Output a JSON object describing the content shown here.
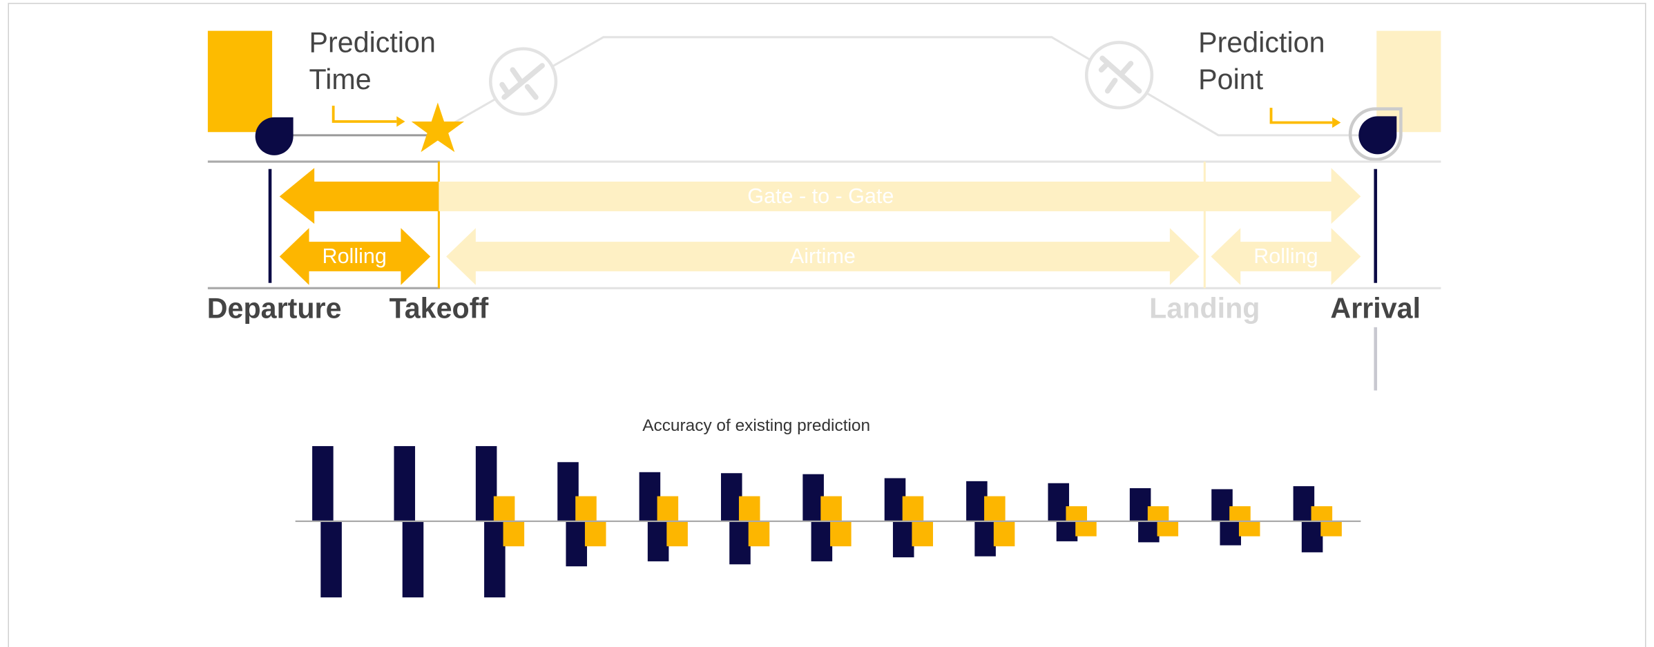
{
  "diagram": {
    "prediction_time": [
      "Prediction",
      "Time"
    ],
    "prediction_point": [
      "Prediction",
      "Point"
    ],
    "gate_to_gate": "Gate - to - Gate",
    "rolling_out": "Rolling",
    "airtime": "Airtime",
    "rolling_in": "Rolling",
    "departure": "Departure",
    "takeoff": "Takeoff",
    "landing": "Landing",
    "arrival": "Arrival"
  },
  "chart_data": {
    "type": "bar",
    "title": "Accuracy of existing prediction",
    "ylim": [
      -80,
      80
    ],
    "series": [
      {
        "color": "#0b0a45",
        "values": [
          75,
          75,
          75,
          59,
          49,
          48,
          47,
          43,
          40,
          38,
          33,
          32,
          35
        ]
      },
      {
        "color": "#0b0a45",
        "values": [
          -76,
          -76,
          -76,
          -45,
          -40,
          -43,
          -40,
          -36,
          -35,
          -20,
          -21,
          -24,
          -31
        ]
      },
      {
        "color": "#fdb600",
        "values": [
          null,
          null,
          25,
          25,
          25,
          25,
          25,
          25,
          25,
          15,
          15,
          15,
          15
        ]
      },
      {
        "color": "#fdb600",
        "values": [
          null,
          null,
          -25,
          -25,
          -25,
          -25,
          -25,
          -25,
          -25,
          -15,
          -15,
          -15,
          -15
        ]
      }
    ]
  }
}
